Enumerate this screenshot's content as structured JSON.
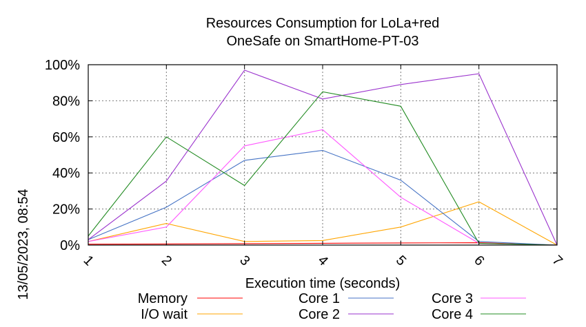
{
  "chart_data": {
    "type": "line",
    "title": [
      "Resources Consumption for LoLa+red",
      "OneSafe on SmartHome-PT-03"
    ],
    "xlabel": "Execution time (seconds)",
    "ylabel": "",
    "x": [
      1,
      2,
      3,
      4,
      5,
      6,
      7
    ],
    "xticks": [
      "1",
      "2",
      "3",
      "4",
      "5",
      "6",
      "7"
    ],
    "xlim": [
      1,
      7
    ],
    "ylim": [
      0,
      100
    ],
    "yticks": [
      "0%",
      "20%",
      "40%",
      "60%",
      "80%",
      "100%"
    ],
    "grid": true,
    "legend_position": "bottom",
    "series": [
      {
        "name": "Memory",
        "color": "#ff0000",
        "values": [
          0.5,
          0.6,
          0.8,
          1.0,
          1.2,
          1.3,
          0
        ]
      },
      {
        "name": "I/O wait",
        "color": "#ffa500",
        "values": [
          2,
          12,
          2,
          2.5,
          10,
          24,
          0
        ]
      },
      {
        "name": "Core 1",
        "color": "#4472c4",
        "values": [
          3,
          21,
          47,
          52.5,
          36,
          2,
          0
        ]
      },
      {
        "name": "Core 2",
        "color": "#9a32cd",
        "values": [
          3,
          35.5,
          97,
          81,
          89,
          95,
          0
        ]
      },
      {
        "name": "Core 3",
        "color": "#ff55ff",
        "values": [
          2,
          10,
          55,
          64,
          26.5,
          1,
          0
        ]
      },
      {
        "name": "Core 4",
        "color": "#228b22",
        "values": [
          5,
          60,
          33,
          85,
          77,
          1,
          0
        ]
      }
    ]
  },
  "timestamp": "13/05/2023, 08:54"
}
